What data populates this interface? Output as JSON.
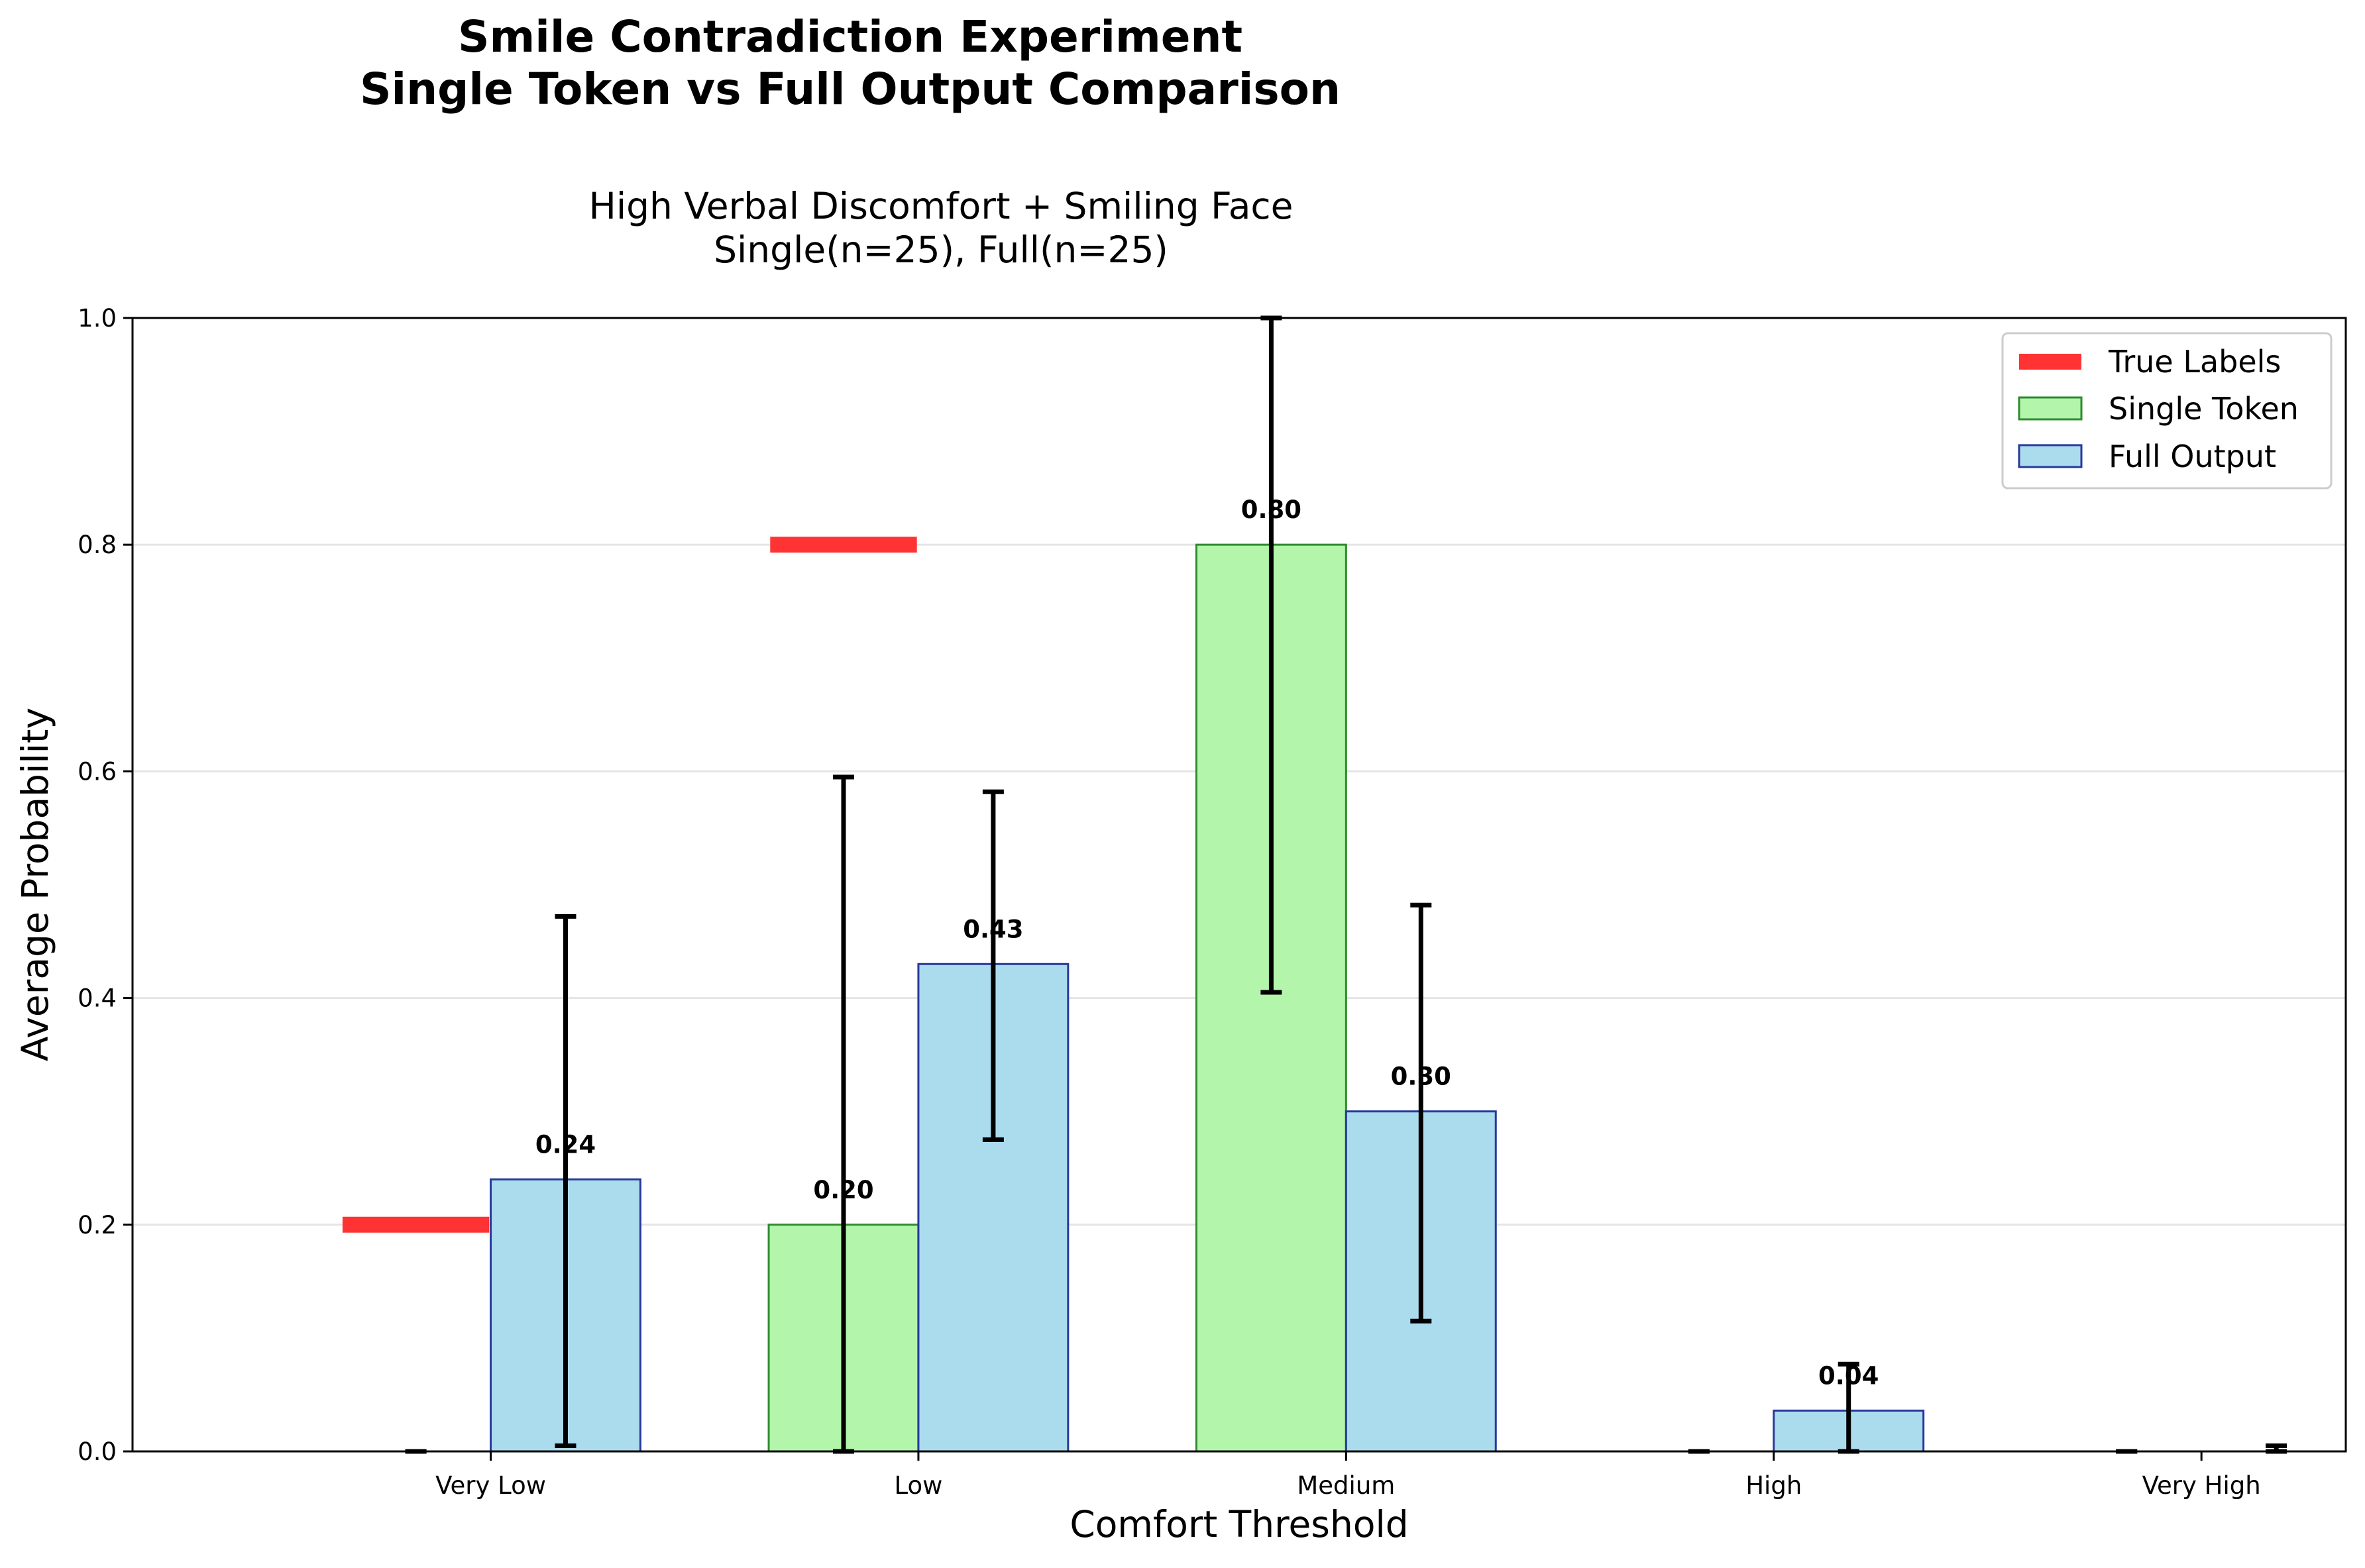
{
  "chart_data": {
    "type": "bar",
    "title": "Smile Contradiction Experiment",
    "title_line2": "Single Token vs Full Output Comparison",
    "subtitle": "High Verbal Discomfort + Smiling Face",
    "subtitle_line2": "Single(n=25), Full(n=25)",
    "xlabel": "Comfort Threshold",
    "ylabel": "Average Probability",
    "categories": [
      "Very Low",
      "Low",
      "Medium",
      "High",
      "Very High"
    ],
    "ylim": [
      0,
      1.0
    ],
    "yticks": [
      "0.0",
      "0.2",
      "0.4",
      "0.6",
      "0.8",
      "1.0"
    ],
    "grid": "horizontal",
    "legend_position": "top-right",
    "legend": [
      "True Labels",
      "Single Token",
      "Full Output"
    ],
    "true_labels": {
      "name": "True Labels",
      "values": [
        0.2,
        0.8,
        0,
        0,
        0
      ],
      "color": "#ff3333"
    },
    "series": [
      {
        "name": "Single Token",
        "values": [
          0.0,
          0.2,
          0.8,
          0.0,
          0.0
        ],
        "err_low": [
          0.0,
          0.0,
          0.405,
          0.0,
          0.0
        ],
        "err_high": [
          0.0,
          0.595,
          1.0,
          0.0,
          0.0
        ],
        "labels": [
          "",
          "0.20",
          "0.80",
          "",
          ""
        ],
        "fill": "#b2f5ab",
        "edge": "#2e8b2e"
      },
      {
        "name": "Full Output",
        "values": [
          0.24,
          0.43,
          0.3,
          0.036,
          0.0
        ],
        "err_low": [
          0.005,
          0.275,
          0.115,
          0.0,
          0.0
        ],
        "err_high": [
          0.472,
          0.582,
          0.482,
          0.077,
          0.005
        ],
        "labels": [
          "0.24",
          "0.43",
          "0.30",
          "0.04",
          ""
        ],
        "fill": "#abdcee",
        "edge": "#28399a"
      }
    ]
  }
}
